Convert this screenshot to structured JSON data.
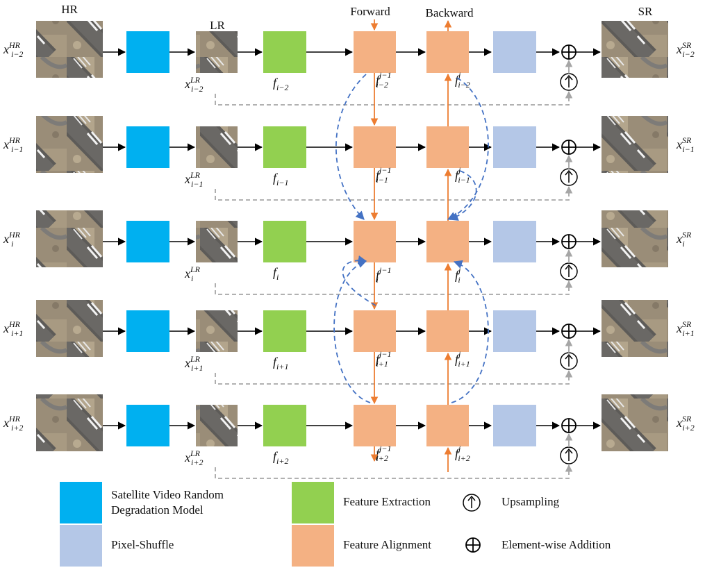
{
  "headers": {
    "hr": "HR",
    "lr": "LR",
    "forward": "Forward",
    "backward": "Backward",
    "sr": "SR"
  },
  "rows": [
    {
      "sub": "i−2",
      "fj1": "j−1",
      "fj": "j"
    },
    {
      "sub": "i−1",
      "fj1": "j−1",
      "fj": "j"
    },
    {
      "sub": "i",
      "fj1": "j−1",
      "fj": "j"
    },
    {
      "sub": "i+1",
      "fj1": "j−1",
      "fj": "j"
    },
    {
      "sub": "i+2",
      "fj1": "j−1",
      "fj": "j"
    }
  ],
  "symbols": {
    "x": "x",
    "f": "f",
    "hr_sup": "HR",
    "lr_sup": "LR",
    "sr_sup": "SR"
  },
  "legend": {
    "degradation_line1": "Satellite Video Random",
    "degradation_line2": "Degradation Model",
    "pixel_shuffle": "Pixel-Shuffle",
    "feature_extraction": "Feature Extraction",
    "feature_alignment": "Feature Alignment",
    "upsampling": "Upsampling",
    "addition": "Element-wise Addition"
  },
  "colors": {
    "degradation": "#00b0f0",
    "extraction": "#92d050",
    "alignment": "#f4b183",
    "pixel_shuffle": "#b4c7e7",
    "orange_arrow": "#ed7d31",
    "blue_dash": "#4472c4",
    "gray_dash": "#a6a6a6",
    "black": "#000000",
    "image_base": "#8a7f6e"
  }
}
